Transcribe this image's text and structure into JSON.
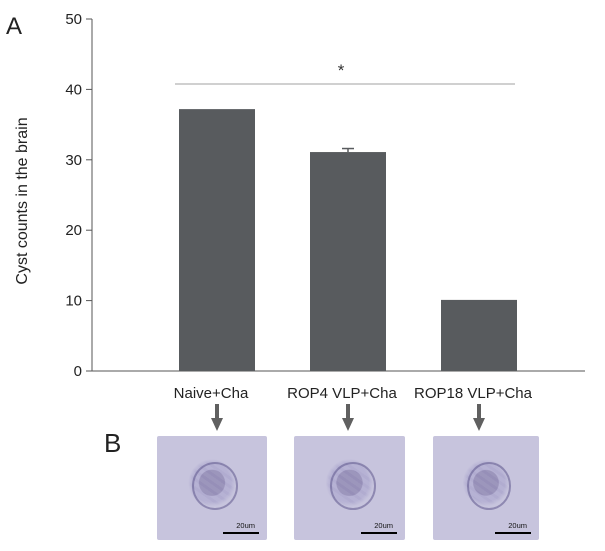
{
  "panel_a_label": "A",
  "panel_b_label": "B",
  "colors": {
    "bar": "#585b5e",
    "axis": "#555555",
    "sig_line": "#a0a0a0",
    "arrow": "#606060",
    "micro_bg": "#c7c4dd"
  },
  "chart_data": {
    "type": "bar",
    "categories": [
      "Naive+Cha",
      "ROP4 VLP+Cha",
      "ROP18 VLP+Cha"
    ],
    "values": [
      37.2,
      31.1,
      10.1
    ],
    "error": [
      0,
      0.5,
      0
    ],
    "ylabel": "Cyst counts in the brain",
    "xlabel": "",
    "ylim": [
      0,
      50
    ],
    "yticks": [
      0,
      10,
      20,
      30,
      40,
      50
    ],
    "annotation": "*",
    "grid": false,
    "legend": "none"
  },
  "micrographs": [
    {
      "scale_label": "20um"
    },
    {
      "scale_label": "20um"
    },
    {
      "scale_label": "20um"
    }
  ]
}
